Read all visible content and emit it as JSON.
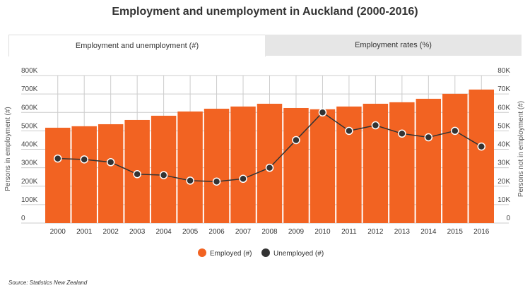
{
  "title": "Employment and unemployment in Auckland (2000-2016)",
  "tabs": [
    {
      "label": "Employment and unemployment (#)",
      "active": true
    },
    {
      "label": "Employment rates (%)",
      "active": false
    }
  ],
  "source": "Source: Statistics New Zealand",
  "colors": {
    "employed": "#f26322",
    "unemployed": "#333333"
  },
  "chart_data": {
    "type": "bar",
    "title": "Employment and unemployment in Auckland (2000-2016)",
    "categories": [
      "2000",
      "2001",
      "2002",
      "2003",
      "2004",
      "2005",
      "2006",
      "2007",
      "2008",
      "2009",
      "2010",
      "2011",
      "2012",
      "2013",
      "2014",
      "2015",
      "2016"
    ],
    "series": [
      {
        "name": "Employed (#)",
        "type": "bar",
        "axis": "left",
        "values": [
          517000,
          525000,
          536000,
          559000,
          582000,
          605000,
          620000,
          632000,
          647000,
          624000,
          617000,
          632000,
          647000,
          655000,
          674000,
          701000,
          724000
        ]
      },
      {
        "name": "Unemployed (#)",
        "type": "line",
        "axis": "right",
        "values": [
          35000,
          34500,
          33000,
          26500,
          26000,
          23000,
          22500,
          24000,
          30000,
          45000,
          60000,
          50000,
          53000,
          48500,
          46500,
          50000,
          41500
        ]
      }
    ],
    "ylabel": "Persons in employment (#)",
    "ylabel_right": "Persons not in employment (#)",
    "ylim": [
      0,
      800000
    ],
    "ylim_right": [
      0,
      80000
    ],
    "yticks": [
      "0",
      "100K",
      "200K",
      "300K",
      "400K",
      "500K",
      "600K",
      "700K",
      "800K"
    ],
    "yticks_right": [
      "0",
      "10K",
      "20K",
      "30K",
      "40K",
      "50K",
      "60K",
      "70K",
      "80K"
    ],
    "grid": true,
    "legend": "bottom"
  }
}
